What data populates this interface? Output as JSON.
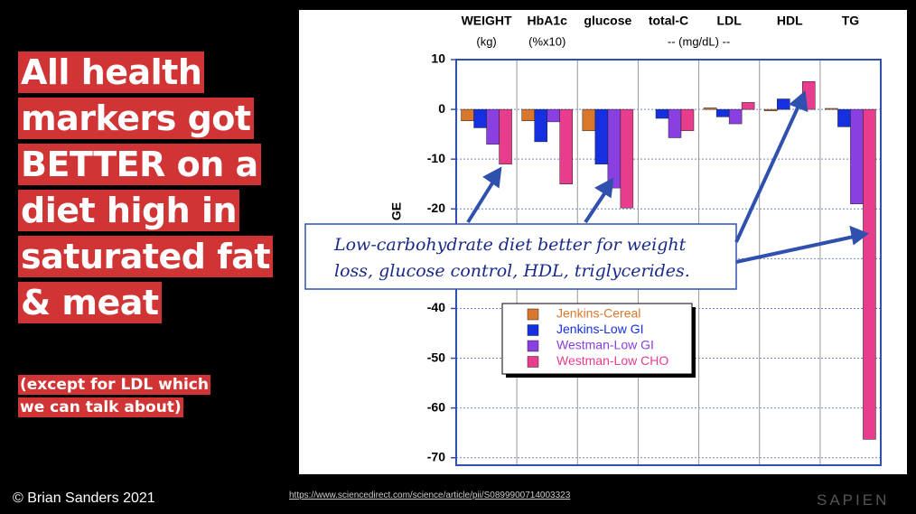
{
  "slide": {
    "headline_lines": [
      "All health",
      "markers got",
      "BETTER on a",
      "diet high in",
      "saturated fat",
      "& meat"
    ],
    "subnote_lines": [
      "(except for LDL which",
      "we can talk about)"
    ],
    "footer_left": "© Brian Sanders 2021",
    "footer_url": "https://www.sciencedirect.com/science/article/pii/S0899900714003323",
    "logo": "SAPIEN"
  },
  "chart_data": {
    "type": "bar",
    "categories": [
      "WEIGHT",
      "HbA1c",
      "glucose",
      "total-C",
      "LDL",
      "HDL",
      "TG"
    ],
    "unit_labels": [
      "(kg)",
      "(%x10)",
      "-- (mg/dL) --"
    ],
    "ylabel": "GE",
    "ylim": [
      -71.5,
      10
    ],
    "yticks": [
      10,
      0,
      -10,
      -20,
      -30,
      -40,
      -50,
      -60,
      -70
    ],
    "grid": true,
    "legend_position": "center",
    "series": [
      {
        "name": "Jenkins-Cereal",
        "color": "#d9782d",
        "values": [
          -2.3,
          -2.3,
          -4.3,
          0,
          0.3,
          -0.3,
          0.2
        ]
      },
      {
        "name": "Jenkins-Low GI",
        "color": "#1430e0",
        "values": [
          -3.7,
          -6.5,
          -11,
          -1.8,
          -1.5,
          2.1,
          -3.5
        ]
      },
      {
        "name": "Westman-Low GI",
        "color": "#8a40e0",
        "values": [
          -7,
          -2.5,
          -15.8,
          -5.7,
          -2.9,
          0,
          -19
        ]
      },
      {
        "name": "Westman-Low CHO",
        "color": "#e83c8c",
        "values": [
          -11,
          -15,
          -19.8,
          -4.3,
          1.4,
          5.6,
          -66.3
        ]
      }
    ],
    "annotation_lines": [
      "Low-carbohydrate diet better for weight",
      "loss, glucose control, HDL, triglycerides."
    ]
  }
}
